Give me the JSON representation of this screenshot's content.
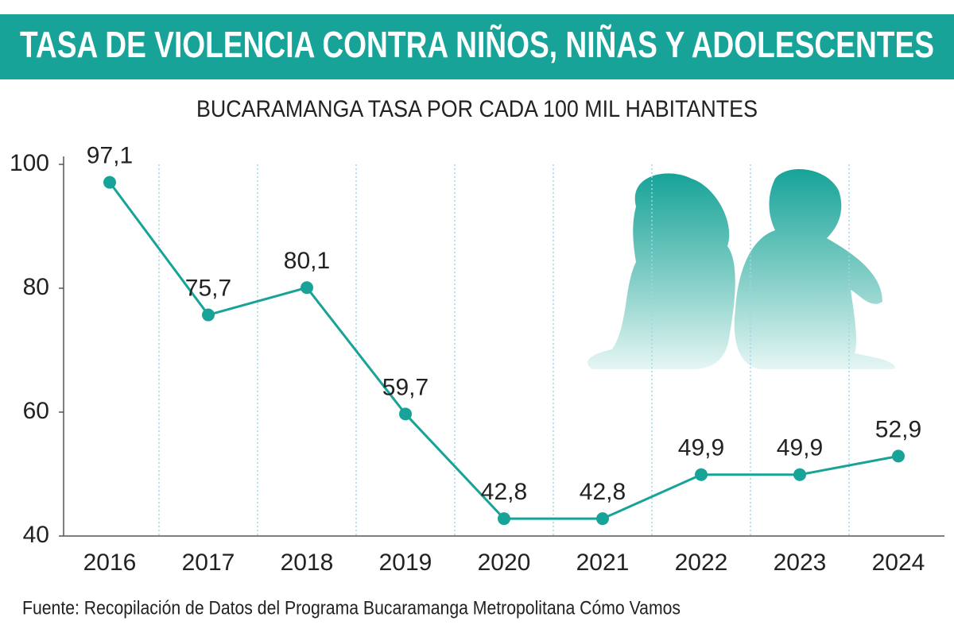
{
  "chart_data": {
    "type": "line",
    "title": "TASA DE VIOLENCIA CONTRA NIÑOS, NIÑAS Y ADOLESCENTES",
    "subtitle": "BUCARAMANGA TASA POR CADA 100 MIL HABITANTES",
    "source": "Fuente: Recopilación de Datos del Programa Bucaramanga Metropolitana Cómo Vamos",
    "categories": [
      "2016",
      "2017",
      "2018",
      "2019",
      "2020",
      "2021",
      "2022",
      "2023",
      "2024"
    ],
    "series": [
      {
        "name": "Tasa",
        "color": "#17a398",
        "values": [
          97.1,
          75.7,
          80.1,
          59.7,
          42.8,
          42.8,
          49.9,
          49.9,
          52.9
        ],
        "value_labels": [
          "97,1",
          "75,7",
          "80,1",
          "59,7",
          "42,8",
          "42,8",
          "49,9",
          "49,9",
          "52,9"
        ]
      }
    ],
    "ylim": [
      40,
      100
    ],
    "yticks": [
      40,
      60,
      80,
      100
    ]
  }
}
